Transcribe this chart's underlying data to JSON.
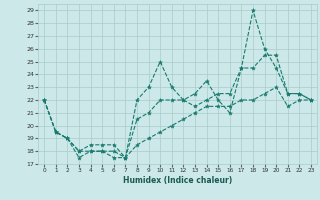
{
  "title": "",
  "xlabel": "Humidex (Indice chaleur)",
  "ylabel": "",
  "bg_color": "#cce8e8",
  "grid_color": "#aacccc",
  "line_color": "#1a7a6e",
  "xlim": [
    -0.5,
    23.5
  ],
  "ylim": [
    17,
    29.5
  ],
  "yticks": [
    17,
    18,
    19,
    20,
    21,
    22,
    23,
    24,
    25,
    26,
    27,
    28,
    29
  ],
  "xticks": [
    0,
    1,
    2,
    3,
    4,
    5,
    6,
    7,
    8,
    9,
    10,
    11,
    12,
    13,
    14,
    15,
    16,
    17,
    18,
    19,
    20,
    21,
    22,
    23
  ],
  "s1": [
    22,
    19.5,
    19,
    17.5,
    18,
    18,
    17.5,
    17.5,
    22,
    23,
    25,
    23,
    22,
    22.5,
    23.5,
    22,
    21,
    24.5,
    29,
    26,
    24.5,
    22.5,
    22.5,
    22
  ],
  "s2": [
    22,
    19.5,
    19,
    18,
    18.5,
    18.5,
    18.5,
    17.5,
    20.5,
    21,
    22,
    22,
    22,
    21.5,
    22,
    22.5,
    22.5,
    24.5,
    24.5,
    25.5,
    25.5,
    22.5,
    22.5,
    22
  ],
  "s3": [
    22,
    19.5,
    19,
    18,
    18,
    18,
    18,
    17.5,
    18.5,
    19,
    19.5,
    20,
    20.5,
    21,
    21.5,
    21.5,
    21.5,
    22,
    22,
    22.5,
    23,
    21.5,
    22,
    22
  ]
}
